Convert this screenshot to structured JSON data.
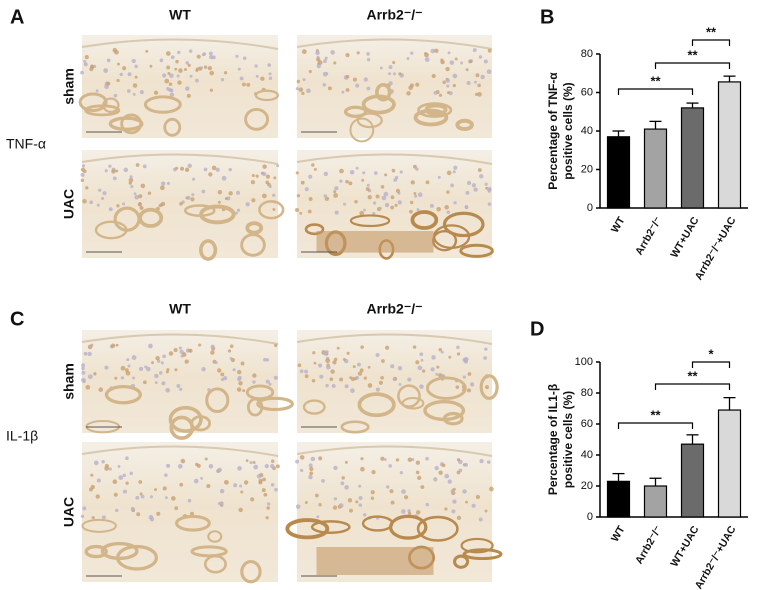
{
  "panels": [
    {
      "label": "A",
      "stain": "TNF-α",
      "columns": [
        "WT",
        "Arrb2⁻/⁻"
      ],
      "rows": [
        "sham",
        "UAC"
      ]
    },
    {
      "label": "C",
      "stain": "IL-1β",
      "columns": [
        "WT",
        "Arrb2⁻/⁻"
      ],
      "rows": [
        "sham",
        "UAC"
      ]
    }
  ],
  "chart_data": [
    {
      "type": "bar",
      "panel": "B",
      "ylabel": [
        "Percentage of TNF-α",
        "positive cells (%)"
      ],
      "categories": [
        "WT",
        "Arrb2⁻/⁻",
        "WT+UAC",
        "Arrb2⁻/⁻+UAC"
      ],
      "series": [
        {
          "values": [
            37,
            41,
            52,
            65.5
          ],
          "errors": [
            3,
            4,
            2.5,
            3
          ],
          "colors": [
            "#000000",
            "#a3a3a3",
            "#6b6b6b",
            "#d9d9d9"
          ]
        }
      ],
      "ylim": [
        0,
        80
      ],
      "yticks": [
        0,
        20,
        40,
        60,
        80
      ],
      "annotations": [
        {
          "label": "**"
        },
        {
          "label": "**"
        },
        {
          "label": "**"
        }
      ]
    },
    {
      "type": "bar",
      "panel": "D",
      "ylabel": [
        "Percentage of IL1-β",
        "positive cells (%)"
      ],
      "categories": [
        "WT",
        "Arrb2⁻/⁻",
        "WT+UAC",
        "Arrb2⁻/⁻+UAC"
      ],
      "series": [
        {
          "values": [
            23,
            20,
            47,
            69
          ],
          "errors": [
            5,
            5,
            6,
            8
          ],
          "colors": [
            "#000000",
            "#a3a3a3",
            "#6b6b6b",
            "#d9d9d9"
          ]
        }
      ],
      "ylim": [
        0,
        100
      ],
      "yticks": [
        0,
        20,
        40,
        60,
        80,
        100
      ],
      "annotations": [
        {
          "label": "**"
        },
        {
          "label": "**"
        },
        {
          "label": "*"
        }
      ]
    }
  ]
}
